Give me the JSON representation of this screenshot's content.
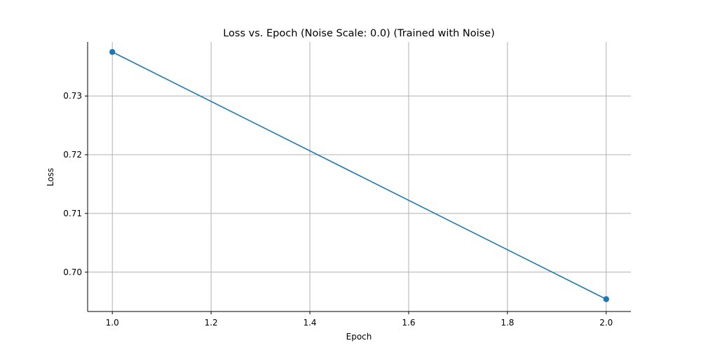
{
  "chart_data": {
    "type": "line",
    "title": "Loss vs. Epoch (Noise Scale: 0.0) (Trained with Noise)",
    "xlabel": "Epoch",
    "ylabel": "Loss",
    "xlim": [
      0.95,
      2.05
    ],
    "ylim": [
      0.6933,
      0.7392
    ],
    "x_ticks": [
      1.0,
      1.2,
      1.4,
      1.6,
      1.8,
      2.0
    ],
    "x_tick_labels": [
      "1.0",
      "1.2",
      "1.4",
      "1.6",
      "1.8",
      "2.0"
    ],
    "y_ticks": [
      0.7,
      0.71,
      0.72,
      0.73
    ],
    "y_tick_labels": [
      "0.70",
      "0.71",
      "0.72",
      "0.73"
    ],
    "grid": true,
    "series": [
      {
        "color": "#1f77b4",
        "marker": "circle",
        "x": [
          1,
          2
        ],
        "y": [
          0.7375,
          0.6954
        ]
      }
    ]
  }
}
